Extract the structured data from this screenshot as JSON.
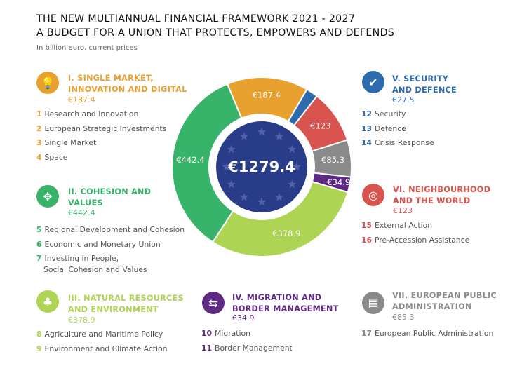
{
  "header": {
    "title_line1": "THE NEW MULTIANNUAL FINANCIAL FRAMEWORK 2021 - 2027",
    "title_line2": "A BUDGET FOR A UNION THAT PROTECTS, EMPOWERS AND DEFENDS",
    "subtitle": "In billion euro, current prices"
  },
  "chart_data": {
    "type": "pie",
    "variant": "donut",
    "total_label": "€1279.4",
    "total": 1279.4,
    "unit": "billion euro, current prices",
    "slices": [
      {
        "name": "I. Single Market, Innovation and Digital",
        "value": 187.4,
        "label": "€187.4",
        "color": "#E8A02F",
        "label_outside": false
      },
      {
        "name": "V. Security and Defence",
        "value": 27.5,
        "label": "€27.5",
        "color": "#2E6AAE",
        "label_outside": true
      },
      {
        "name": "VI. Neighbourhood and the World",
        "value": 123,
        "label": "€123",
        "color": "#D9534F",
        "label_outside": false
      },
      {
        "name": "VII. European Public Administration",
        "value": 85.3,
        "label": "€85.3",
        "color": "#8A8A8A",
        "label_outside": false
      },
      {
        "name": "IV. Migration and Border Management",
        "value": 34.9,
        "label": "€34.9",
        "color": "#5E2A84",
        "label_outside": false
      },
      {
        "name": "III. Natural Resources and Environment",
        "value": 378.9,
        "label": "€378.9",
        "color": "#ADD452",
        "label_outside": false
      },
      {
        "name": "II. Cohesion and Values",
        "value": 442.4,
        "label": "€442.4",
        "color": "#37B36A",
        "label_outside": false
      }
    ],
    "center_color": "#293C8A"
  },
  "sections": [
    {
      "id": "s1",
      "icon": "lightbulb-icon",
      "glyph": "💡",
      "color": "#E8A02F",
      "heading1": "I. SINGLE MARKET,",
      "heading2": "INNOVATION AND DIGITAL",
      "value": "€187.4",
      "items": [
        {
          "n": "1",
          "t": "Research and Innovation"
        },
        {
          "n": "2",
          "t": "European Strategic Investments"
        },
        {
          "n": "3",
          "t": "Single Market"
        },
        {
          "n": "4",
          "t": "Space"
        }
      ]
    },
    {
      "id": "s2",
      "icon": "puzzle-icon",
      "glyph": "✥",
      "color": "#37B36A",
      "heading1": "II. COHESION AND",
      "heading2": "VALUES",
      "value": "€442.4",
      "items": [
        {
          "n": "5",
          "t": "Regional Development and Cohesion"
        },
        {
          "n": "6",
          "t": "Economic and Monetary Union"
        },
        {
          "n": "7",
          "t": "Investing in People,",
          "t2": "Social Cohesion and Values"
        }
      ]
    },
    {
      "id": "s3",
      "icon": "trees-icon",
      "glyph": "♣",
      "color": "#ADD452",
      "heading1": "III. NATURAL RESOURCES",
      "heading2": "AND ENVIRONMENT",
      "value": "€378.9",
      "items": [
        {
          "n": "8",
          "t": "Agriculture and Maritime Policy"
        },
        {
          "n": "9",
          "t": "Environment and Climate Action"
        }
      ]
    },
    {
      "id": "s4",
      "icon": "signpost-icon",
      "glyph": "⇆",
      "color": "#5E2A84",
      "heading1": "IV. MIGRATION AND",
      "heading2": "BORDER MANAGEMENT",
      "value": "€34.9",
      "items": [
        {
          "n": "10",
          "t": "Migration"
        },
        {
          "n": "11",
          "t": "Border Management"
        }
      ]
    },
    {
      "id": "s5",
      "icon": "shield-check-icon",
      "glyph": "✔",
      "color": "#2E6AAE",
      "heading1": "V. SECURITY",
      "heading2": "AND DEFENCE",
      "value": "€27.5",
      "items": [
        {
          "n": "12",
          "t": "Security"
        },
        {
          "n": "13",
          "t": "Defence"
        },
        {
          "n": "14",
          "t": "Crisis Response"
        }
      ]
    },
    {
      "id": "s6",
      "icon": "globe-pin-icon",
      "glyph": "◎",
      "color": "#D9534F",
      "heading1": "VI. NEIGHBOURHOOD",
      "heading2": "AND THE WORLD",
      "value": "€123",
      "items": [
        {
          "n": "15",
          "t": "External Action"
        },
        {
          "n": "16",
          "t": "Pre-Accession Assistance"
        }
      ]
    },
    {
      "id": "s7",
      "icon": "documents-icon",
      "glyph": "▤",
      "color": "#8A8A8A",
      "heading1": "VII. EUROPEAN PUBLIC",
      "heading2": "ADMINISTRATION",
      "value": "€85.3",
      "items": [
        {
          "n": "17",
          "t": "European Public Administration"
        }
      ]
    }
  ]
}
